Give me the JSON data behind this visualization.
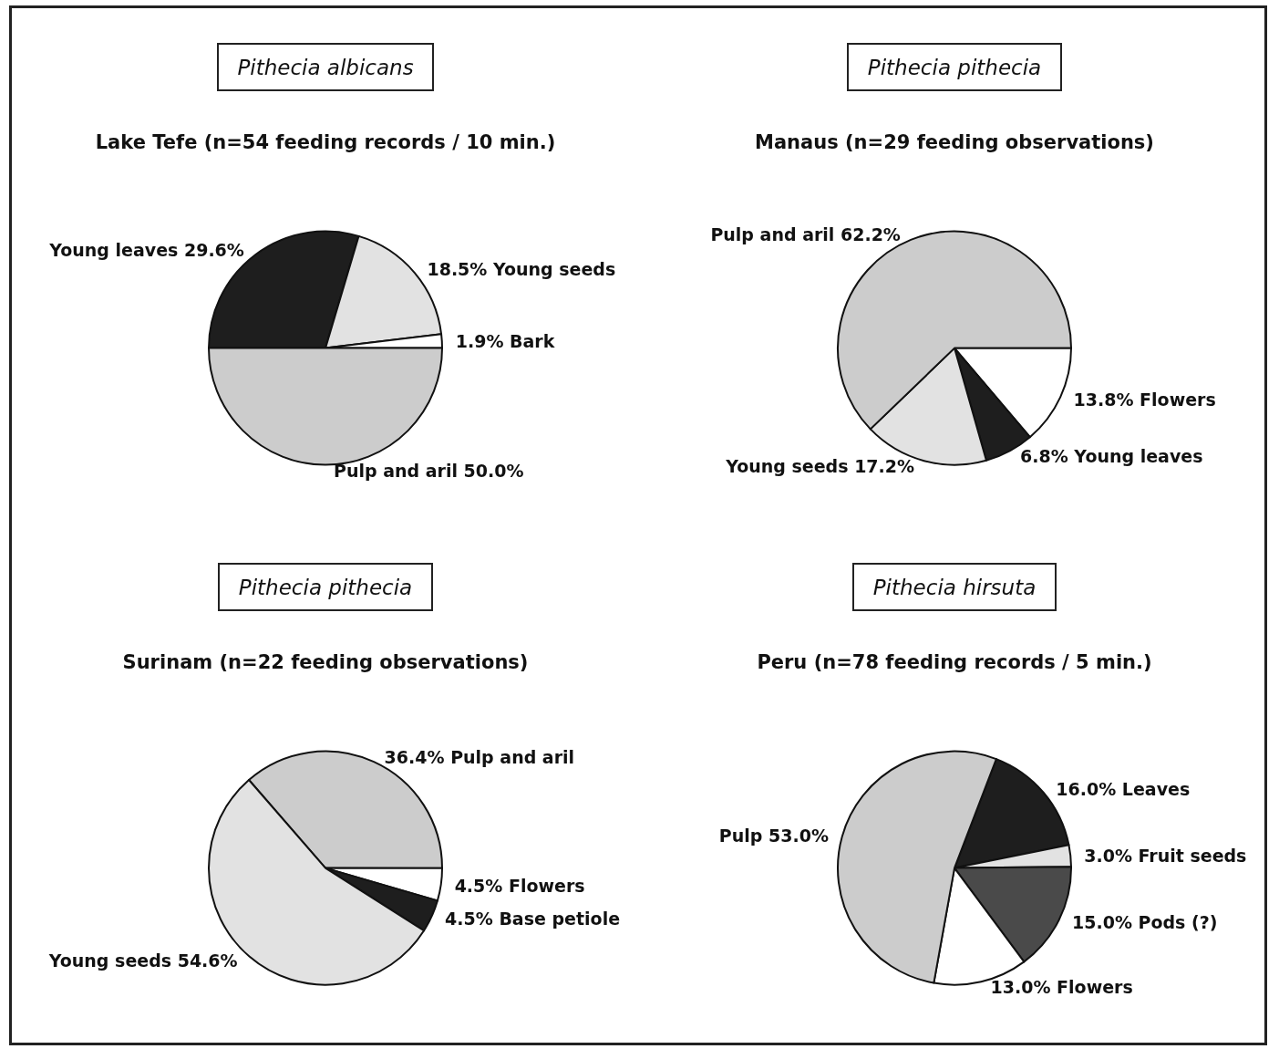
{
  "chart_data": [
    {
      "type": "pie",
      "title": "Pithecia albicans",
      "subtitle": "Lake Tefe (n=54 feeding records / 10 min.)",
      "categories": [
        "Young leaves",
        "Young seeds",
        "Bark",
        "Pulp and aril"
      ],
      "values": [
        29.6,
        18.5,
        1.9,
        50.0
      ],
      "colors": [
        "#1e1e1e",
        "#e2e2e2",
        "#ffffff",
        "#cccccc"
      ],
      "value_labels": [
        "29.6%",
        "18.5%",
        "1.9%",
        "50.0%"
      ]
    },
    {
      "type": "pie",
      "title": "Pithecia pithecia",
      "subtitle": "Manaus (n=29 feeding observations)",
      "categories": [
        "Flowers",
        "Young leaves",
        "Young seeds",
        "Pulp and aril"
      ],
      "values": [
        13.8,
        6.8,
        17.2,
        62.2
      ],
      "colors": [
        "#ffffff",
        "#1e1e1e",
        "#e2e2e2",
        "#cccccc"
      ],
      "value_labels": [
        "13.8%",
        "6.8%",
        "17.2%",
        "62.2%"
      ]
    },
    {
      "type": "pie",
      "title": "Pithecia pithecia",
      "subtitle": "Surinam (n=22 feeding observations)",
      "categories": [
        "Pulp and aril",
        "Flowers",
        "Base petiole",
        "Young seeds"
      ],
      "values": [
        36.4,
        4.5,
        4.5,
        54.6
      ],
      "colors": [
        "#cccccc",
        "#ffffff",
        "#1e1e1e",
        "#e2e2e2"
      ],
      "value_labels": [
        "36.4%",
        "4.5%",
        "4.5%",
        "54.6%"
      ]
    },
    {
      "type": "pie",
      "title": "Pithecia hirsuta",
      "subtitle": "Peru (n=78 feeding records / 5 min.)",
      "categories": [
        "Leaves",
        "Fruit seeds",
        "Pods (?)",
        "Flowers",
        "Pulp"
      ],
      "values": [
        16.0,
        3.0,
        15.0,
        13.0,
        53.0
      ],
      "colors": [
        "#1e1e1e",
        "#e2e2e2",
        "#4a4a4a",
        "#ffffff",
        "#cccccc"
      ],
      "value_labels": [
        "16.0%",
        "3.0%",
        "15.0%",
        "13.0%",
        "53.0%"
      ]
    }
  ]
}
